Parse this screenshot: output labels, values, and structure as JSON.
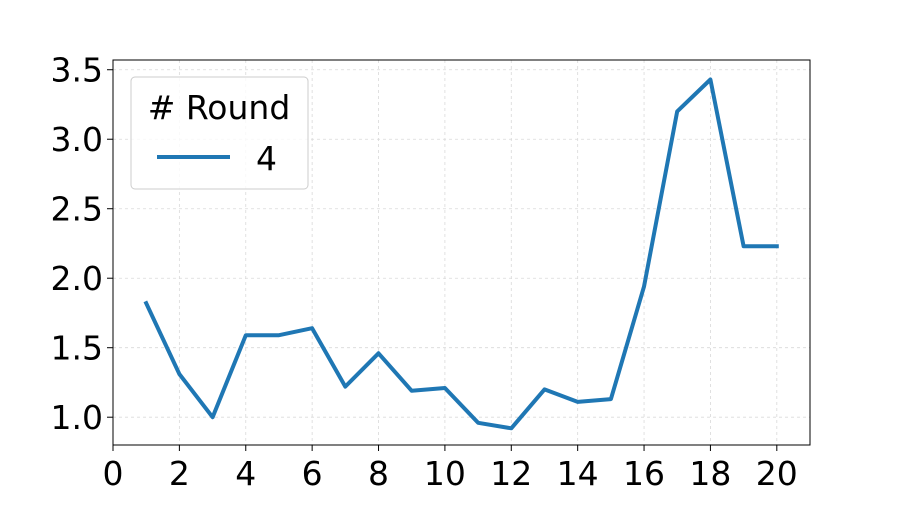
{
  "chart_data": {
    "type": "line",
    "title": "",
    "xlabel": "",
    "ylabel": "",
    "xlim": [
      0,
      21
    ],
    "ylim": [
      0.8,
      3.57
    ],
    "x_ticks": [
      0,
      2,
      4,
      6,
      8,
      10,
      12,
      14,
      16,
      18,
      20
    ],
    "y_ticks": [
      1.0,
      1.5,
      2.0,
      2.5,
      3.0,
      3.5
    ],
    "y_tick_labels": [
      "1.0",
      "1.5",
      "2.0",
      "2.5",
      "3.0",
      "3.5"
    ],
    "grid": true,
    "legend": {
      "title": "# Round",
      "placement": "top-left"
    },
    "series": [
      {
        "name": "4",
        "color": "#1f77b4",
        "x": [
          1,
          2,
          3,
          4,
          5,
          6,
          7,
          8,
          9,
          10,
          11,
          12,
          13,
          14,
          15,
          16,
          17,
          18,
          19,
          20
        ],
        "y": [
          1.82,
          1.31,
          1.0,
          1.59,
          1.59,
          1.64,
          1.22,
          1.46,
          1.19,
          1.21,
          0.96,
          0.92,
          1.2,
          1.11,
          1.13,
          1.94,
          3.2,
          3.43,
          2.23,
          2.23
        ]
      }
    ]
  }
}
